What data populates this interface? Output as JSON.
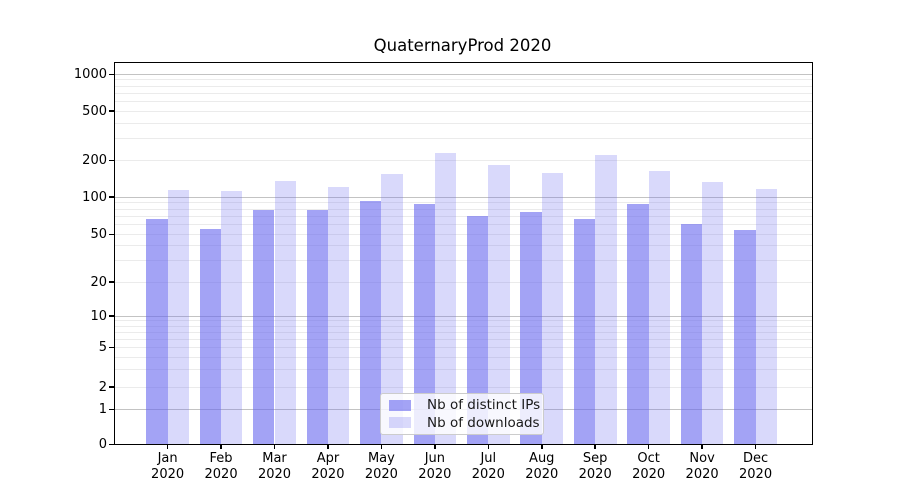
{
  "chart_data": {
    "type": "bar",
    "title": "QuaternaryProd 2020",
    "xlabel": "",
    "ylabel": "",
    "yscale": "symlog",
    "ylim": [
      0,
      1250
    ],
    "grid": true,
    "legend_position": "lower-center-inside",
    "yticks": [
      0,
      1,
      2,
      5,
      10,
      20,
      50,
      100,
      200,
      500,
      1000
    ],
    "categories": [
      "Jan",
      "Feb",
      "Mar",
      "Apr",
      "May",
      "Jun",
      "Jul",
      "Aug",
      "Sep",
      "Oct",
      "Nov",
      "Dec"
    ],
    "x_year_line": "2020",
    "series": [
      {
        "name": "Nb of distinct IPs",
        "color": "rgba(102,102,238,0.6)",
        "values": [
          67,
          55,
          78,
          78,
          93,
          88,
          70,
          76,
          67,
          88,
          61,
          54
        ]
      },
      {
        "name": "Nb of downloads",
        "color": "rgba(102,102,238,0.25)",
        "values": [
          114,
          113,
          136,
          121,
          156,
          230,
          182,
          157,
          221,
          163,
          134,
          116
        ]
      }
    ]
  }
}
